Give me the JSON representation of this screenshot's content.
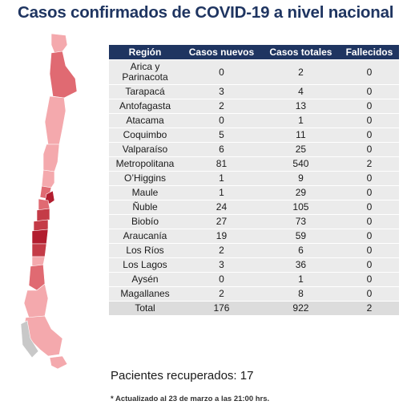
{
  "title": "Casos confirmados de COVID-19 a nivel nacional",
  "colors": {
    "header_bg": "#1f3561",
    "title": "#1f3561",
    "row_bg": "#ebebeb",
    "map_light": "#f4a9ad",
    "map_mid": "#e06a72",
    "map_dark": "#c43b47",
    "map_darker": "#b21d2f",
    "map_grey": "#c8c8c8"
  },
  "table": {
    "headers": [
      "Región",
      "Casos nuevos",
      "Casos totales",
      "Fallecidos"
    ],
    "rows": [
      {
        "region": "Arica y Parinacota",
        "nuevos": "0",
        "totales": "2",
        "fallecidos": "0"
      },
      {
        "region": "Tarapacá",
        "nuevos": "3",
        "totales": "4",
        "fallecidos": "0"
      },
      {
        "region": "Antofagasta",
        "nuevos": "2",
        "totales": "13",
        "fallecidos": "0"
      },
      {
        "region": "Atacama",
        "nuevos": "0",
        "totales": "1",
        "fallecidos": "0"
      },
      {
        "region": "Coquimbo",
        "nuevos": "5",
        "totales": "11",
        "fallecidos": "0"
      },
      {
        "region": "Valparaíso",
        "nuevos": "6",
        "totales": "25",
        "fallecidos": "0"
      },
      {
        "region": "Metropolitana",
        "nuevos": "81",
        "totales": "540",
        "fallecidos": "2"
      },
      {
        "region": "O’Higgins",
        "nuevos": "1",
        "totales": "9",
        "fallecidos": "0"
      },
      {
        "region": "Maule",
        "nuevos": "1",
        "totales": "29",
        "fallecidos": "0"
      },
      {
        "region": "Ñuble",
        "nuevos": "24",
        "totales": "105",
        "fallecidos": "0"
      },
      {
        "region": "Biobío",
        "nuevos": "27",
        "totales": "73",
        "fallecidos": "0"
      },
      {
        "region": "Araucanía",
        "nuevos": "19",
        "totales": "59",
        "fallecidos": "0"
      },
      {
        "region": "Los Ríos",
        "nuevos": "2",
        "totales": "6",
        "fallecidos": "0"
      },
      {
        "region": "Los Lagos",
        "nuevos": "3",
        "totales": "36",
        "fallecidos": "0"
      },
      {
        "region": "Aysén",
        "nuevos": "0",
        "totales": "1",
        "fallecidos": "0"
      },
      {
        "region": "Magallanes",
        "nuevos": "2",
        "totales": "8",
        "fallecidos": "0"
      }
    ],
    "total": {
      "region": "Total",
      "nuevos": "176",
      "totales": "922",
      "fallecidos": "2"
    }
  },
  "recovered": "Pacientes recuperados: 17",
  "note": "* Actualizado al 23 de marzo a las 21:00 hrs."
}
